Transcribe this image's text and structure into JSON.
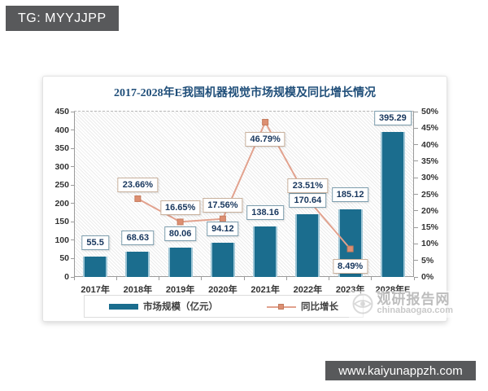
{
  "badge": {
    "text": "TG: MYYJJPP"
  },
  "footer": {
    "text": "www.kaiyunappzh.com"
  },
  "watermark": {
    "name": "观研报告网",
    "domain": "chinabaogao.com"
  },
  "chart_data": {
    "type": "bar+line",
    "title": "2017-2028年E我国机器视觉市场规模及同比增长情况",
    "categories": [
      "2017年",
      "2018年",
      "2019年",
      "2020年",
      "2021年",
      "2022年",
      "2023年",
      "2028年E"
    ],
    "series": [
      {
        "name": "市场规模（亿元）",
        "type": "bar",
        "axis": "left",
        "color": "#1b6d8e",
        "values": [
          55.5,
          68.63,
          80.06,
          94.12,
          138.16,
          170.64,
          185.12,
          395.29
        ],
        "labels": [
          "55.5",
          "68.63",
          "80.06",
          "94.12",
          "138.16",
          "170.64",
          "185.12",
          "395.29"
        ]
      },
      {
        "name": "同比增长",
        "type": "line",
        "axis": "right",
        "color": "#e2a28e",
        "marker_color": "#dd8f72",
        "values": [
          null,
          23.66,
          16.65,
          17.56,
          46.79,
          23.51,
          8.49,
          null
        ],
        "labels": [
          null,
          "23.66%",
          "16.65%",
          "17.56%",
          "46.79%",
          "23.51%",
          "8.49%",
          null
        ],
        "label_below": [
          false,
          false,
          false,
          false,
          true,
          false,
          true,
          false
        ]
      }
    ],
    "left_axis": {
      "min": 0,
      "max": 450,
      "step": 50,
      "suffix": ""
    },
    "right_axis": {
      "min": 0,
      "max": 50,
      "step": 5,
      "suffix": "%"
    },
    "grid": "hatched-background, dashed top line",
    "legend_position": "bottom"
  }
}
